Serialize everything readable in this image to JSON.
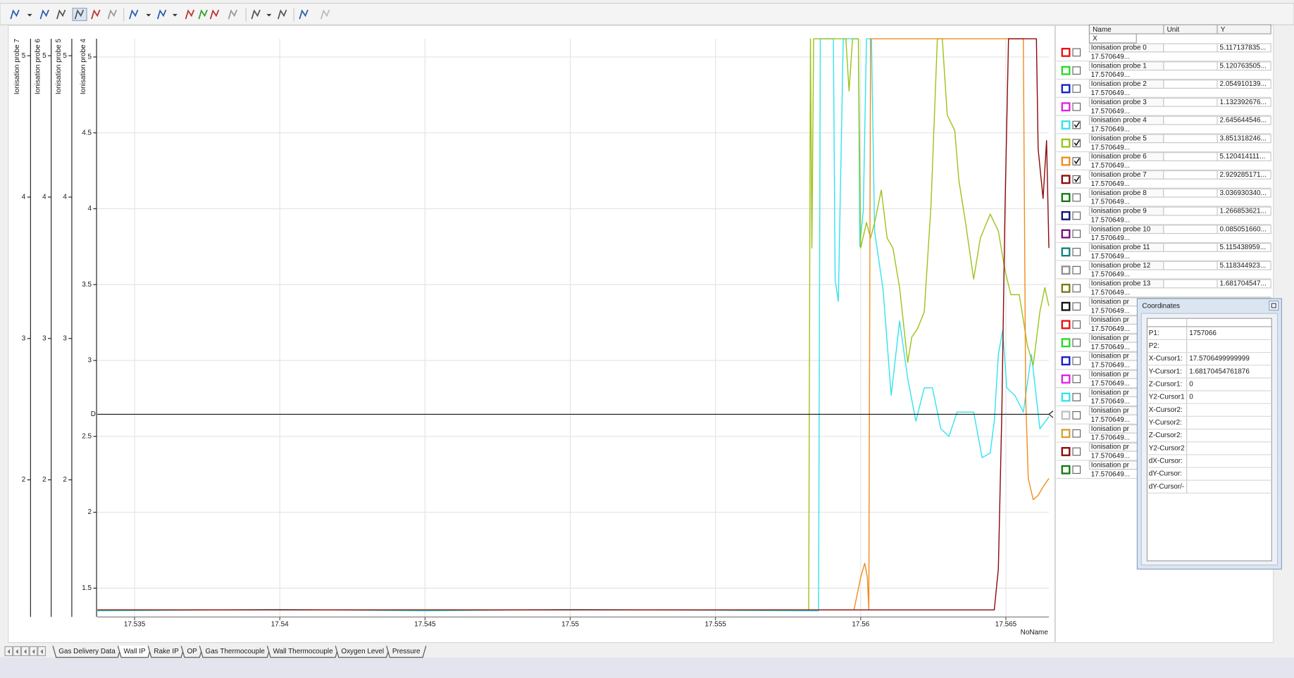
{
  "chart_data": {
    "type": "line",
    "x_label": "NoName",
    "xlim": [
      17.53372,
      17.56648
    ],
    "xticks": [
      17.535,
      17.54,
      17.545,
      17.55,
      17.555,
      17.56,
      17.565
    ],
    "grid": true,
    "grid_axis": 3,
    "cursor_y": 2.6456,
    "cursor_axis": 3,
    "cursor_label": "D",
    "axes": [
      {
        "title": "Ionisation probe 7",
        "color": "#8b0a0a",
        "ylim": [
          1.03,
          5.12
        ],
        "yticks": [
          2,
          3,
          4,
          5
        ]
      },
      {
        "title": "Ionisation probe 6",
        "color": "#f08c1e",
        "ylim": [
          1.03,
          5.12
        ],
        "yticks": [
          2,
          3,
          4,
          5
        ]
      },
      {
        "title": "Ionisation probe 5",
        "color": "#9cc31a",
        "ylim": [
          1.03,
          5.12
        ],
        "yticks": [
          2,
          3,
          4,
          5
        ]
      },
      {
        "title": "Ionisation probe 4",
        "color": "#33e3f0",
        "ylim": [
          1.31,
          5.12
        ],
        "yticks": [
          1.5,
          2,
          2.5,
          3,
          3.5,
          4,
          4.5,
          5
        ]
      }
    ],
    "series": [
      {
        "color": "#33e3f0",
        "axis": 3,
        "x": [
          17.53372,
          17.54,
          17.545,
          17.55,
          17.55835,
          17.55855,
          17.55861,
          17.55906,
          17.55912,
          17.55923,
          17.5594,
          17.55992,
          17.55997,
          17.56009,
          17.5602,
          17.56037,
          17.56048,
          17.56077,
          17.56105,
          17.56134,
          17.56162,
          17.5619,
          17.56219,
          17.56247,
          17.56276,
          17.56304,
          17.56332,
          17.56361,
          17.56389,
          17.56418,
          17.56446,
          17.5646,
          17.56474,
          17.56489,
          17.56503,
          17.56531,
          17.5656,
          17.56588,
          17.56617,
          17.56648
        ],
        "values": [
          1.35,
          1.36,
          1.35,
          1.36,
          1.35,
          1.35,
          5.12,
          5.12,
          3.53,
          3.39,
          5.12,
          5.12,
          3.75,
          3.99,
          5.12,
          5.12,
          3.85,
          3.47,
          2.77,
          3.26,
          2.88,
          2.6,
          2.82,
          2.82,
          2.55,
          2.5,
          2.66,
          2.66,
          2.66,
          2.36,
          2.39,
          2.6,
          3.04,
          3.2,
          2.82,
          2.77,
          2.66,
          3.04,
          2.55,
          2.63
        ]
      },
      {
        "color": "#9cc31a",
        "axis": 2,
        "x": [
          17.53372,
          17.54,
          17.545,
          17.55,
          17.55807,
          17.55821,
          17.55827,
          17.55832,
          17.55838,
          17.55949,
          17.5596,
          17.55972,
          17.55992,
          17.56,
          17.5602,
          17.56034,
          17.56048,
          17.56071,
          17.56091,
          17.56111,
          17.56134,
          17.56162,
          17.56176,
          17.56196,
          17.56219,
          17.56242,
          17.56264,
          17.56281,
          17.56298,
          17.56324,
          17.56338,
          17.56361,
          17.56389,
          17.56412,
          17.56446,
          17.56474,
          17.56497,
          17.56517,
          17.56546,
          17.56574,
          17.56594,
          17.56617,
          17.56634,
          17.56648
        ],
        "values": [
          1.08,
          1.08,
          1.08,
          1.08,
          1.08,
          1.08,
          5.12,
          3.64,
          5.12,
          5.12,
          4.75,
          5.12,
          5.12,
          3.64,
          3.82,
          3.71,
          3.82,
          4.05,
          3.71,
          3.64,
          3.36,
          2.83,
          3.01,
          3.07,
          3.19,
          3.94,
          5.12,
          5.12,
          4.58,
          4.47,
          4.12,
          3.82,
          3.42,
          3.71,
          3.88,
          3.76,
          3.48,
          3.31,
          3.31,
          2.95,
          2.81,
          3.19,
          3.36,
          3.23
        ]
      },
      {
        "color": "#f08c1e",
        "axis": 1,
        "x": [
          17.53372,
          17.54,
          17.545,
          17.55,
          17.55977,
          17.56,
          17.56014,
          17.56023,
          17.56028,
          17.56034,
          17.5656,
          17.56568,
          17.56577,
          17.56594,
          17.56611,
          17.56628,
          17.56648
        ],
        "values": [
          1.08,
          1.08,
          1.08,
          1.08,
          1.08,
          1.31,
          1.41,
          1.31,
          1.08,
          5.12,
          5.12,
          2.59,
          2.01,
          1.86,
          1.89,
          1.95,
          2.01
        ]
      },
      {
        "color": "#8b0a0a",
        "axis": 0,
        "x": [
          17.53372,
          17.54,
          17.545,
          17.55,
          17.5646,
          17.56474,
          17.56486,
          17.56497,
          17.56509,
          17.56605,
          17.56611,
          17.56628,
          17.5664,
          17.56648
        ],
        "values": [
          1.08,
          1.08,
          1.08,
          1.08,
          1.08,
          1.37,
          2.48,
          3.93,
          5.12,
          5.12,
          4.34,
          3.99,
          4.4,
          3.64
        ]
      }
    ]
  },
  "channel_table": {
    "columns": [
      "Name",
      "Unit",
      "Y"
    ],
    "x_row": "X",
    "rows": [
      {
        "name": "Ionisation probe 0",
        "y": "5.117137835...",
        "x": "17.570649...",
        "color": "#e81010",
        "checked": false
      },
      {
        "name": "Ionisation probe 1",
        "y": "5.120763505...",
        "x": "17.570649...",
        "color": "#22dd22",
        "checked": false
      },
      {
        "name": "Ionisation probe 2",
        "y": "2.054910139...",
        "x": "17.570649...",
        "color": "#1020c8",
        "checked": false
      },
      {
        "name": "Ionisation probe 3",
        "y": "1.132392676...",
        "x": "17.570649...",
        "color": "#e020e0",
        "checked": false
      },
      {
        "name": "Ionisation probe 4",
        "y": "2.645644546...",
        "x": "17.570649...",
        "color": "#33e3f0",
        "checked": true
      },
      {
        "name": "Ionisation probe 5",
        "y": "3.851318246...",
        "x": "17.570649...",
        "color": "#9cc31a",
        "checked": true
      },
      {
        "name": "Ionisation probe 6",
        "y": "5.120414111...",
        "x": "17.570649...",
        "color": "#f08c1e",
        "checked": true
      },
      {
        "name": "Ionisation probe 7",
        "y": "2.929285171...",
        "x": "17.570649...",
        "color": "#8b0a0a",
        "checked": true
      },
      {
        "name": "Ionisation probe 8",
        "y": "3.036930340...",
        "x": "17.570649...",
        "color": "#107a10",
        "checked": false
      },
      {
        "name": "Ionisation probe 9",
        "y": "1.266853621...",
        "x": "17.570649...",
        "color": "#101070",
        "checked": false
      },
      {
        "name": "Ionisation probe 10",
        "y": "0.085051660...",
        "x": "17.570649...",
        "color": "#7a107a",
        "checked": false
      },
      {
        "name": "Ionisation probe 11",
        "y": "5.115438959...",
        "x": "17.570649...",
        "color": "#108080",
        "checked": false
      },
      {
        "name": "Ionisation probe 12",
        "y": "5.118344923...",
        "x": "17.570649...",
        "color": "#909090",
        "checked": false
      },
      {
        "name": "Ionisation probe 13",
        "y": "1.681704547...",
        "x": "17.570649...",
        "color": "#7a7a10",
        "checked": false
      },
      {
        "name": "Ionisation pr",
        "x": "17.570649...",
        "color": "#101010",
        "checked": false
      },
      {
        "name": "Ionisation pr",
        "x": "17.570649...",
        "color": "#e81010",
        "checked": false
      },
      {
        "name": "Ionisation pr",
        "x": "17.570649...",
        "color": "#22dd22",
        "checked": false
      },
      {
        "name": "Ionisation pr",
        "x": "17.570649...",
        "color": "#1020c8",
        "checked": false
      },
      {
        "name": "Ionisation pr",
        "x": "17.570649...",
        "color": "#e020e0",
        "checked": false
      },
      {
        "name": "Ionisation pr",
        "x": "17.570649...",
        "color": "#33e3f0",
        "checked": false
      },
      {
        "name": "Ionisation pr",
        "x": "17.570649...",
        "color": "#c0c0c0",
        "checked": false
      },
      {
        "name": "Ionisation pr",
        "x": "17.570649...",
        "color": "#d8a030",
        "checked": false
      },
      {
        "name": "Ionisation pr",
        "x": "17.570649...",
        "color": "#8b0a0a",
        "checked": false
      },
      {
        "name": "Ionisation pr",
        "x": "17.570649...",
        "color": "#107a10",
        "checked": false
      }
    ]
  },
  "coordinates": {
    "title": "Coordinates",
    "rows": [
      {
        "label": "P1:",
        "value": "1757066"
      },
      {
        "label": "P2:"
      },
      {
        "label": "X-Cursor1:",
        "value": "17.5706499999999"
      },
      {
        "label": "Y-Cursor1:",
        "value": "1.68170454761876"
      },
      {
        "label": "Z-Cursor1:",
        "value": "0"
      },
      {
        "label": "Y2-Cursor1",
        "value": "0"
      },
      {
        "label": "X-Cursor2:"
      },
      {
        "label": "Y-Cursor2:"
      },
      {
        "label": "Z-Cursor2:"
      },
      {
        "label": "Y2-Cursor2"
      },
      {
        "label": "dX-Cursor:"
      },
      {
        "label": "dY-Cursor:"
      },
      {
        "label": "dY-Cursor/-"
      }
    ]
  },
  "tabs": {
    "items": [
      "Gas Delivery Data",
      "Wall IP",
      "Rake IP",
      "OP",
      "Gas Thermocouple",
      "Wall Thermocouple",
      "Oxygen Level",
      "Pressure"
    ],
    "active": 1
  }
}
